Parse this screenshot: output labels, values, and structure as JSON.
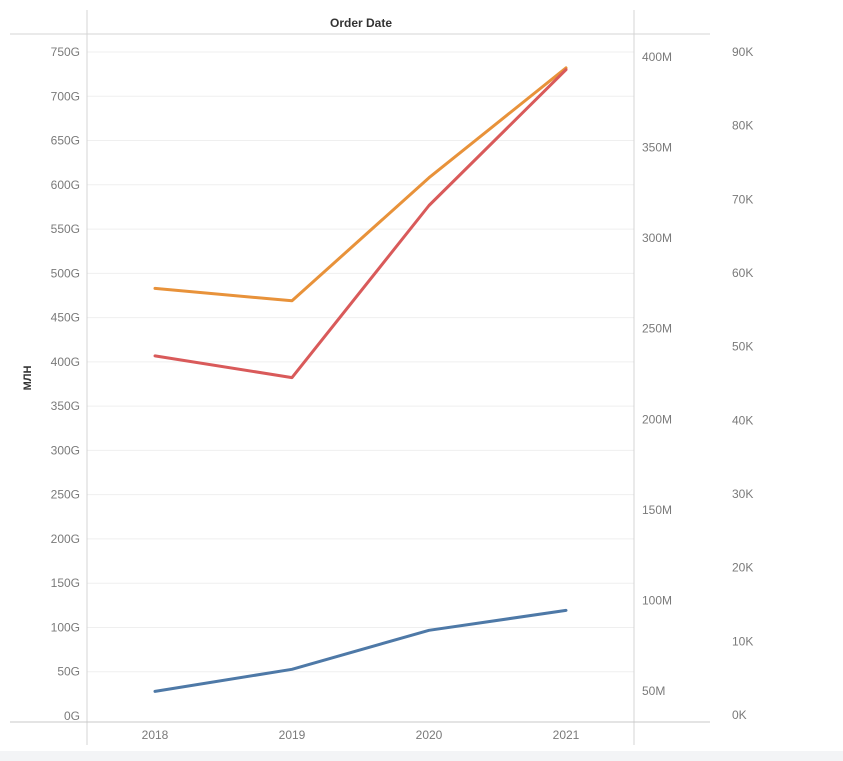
{
  "chart_data": {
    "type": "line",
    "column_header": "Order Date",
    "ylabel": "МЛН",
    "categories": [
      "2018",
      "2019",
      "2020",
      "2021"
    ],
    "axes": {
      "left": {
        "ticks": [
          "0G",
          "50G",
          "100G",
          "150G",
          "200G",
          "250G",
          "300G",
          "350G",
          "400G",
          "450G",
          "500G",
          "550G",
          "600G",
          "650G",
          "700G",
          "750G"
        ],
        "range": [
          0,
          750
        ]
      },
      "right1": {
        "ticks": [
          "50M",
          "100M",
          "150M",
          "200M",
          "250M",
          "300M",
          "350M",
          "400M"
        ],
        "range": [
          50,
          400
        ]
      },
      "right2": {
        "ticks": [
          "0K",
          "10K",
          "20K",
          "30K",
          "40K",
          "50K",
          "60K",
          "70K",
          "80K",
          "90K"
        ],
        "range": [
          0,
          90
        ]
      }
    },
    "series": [
      {
        "color": "#e8923a",
        "axis": "left",
        "values": [
          483,
          469,
          608,
          732
        ]
      },
      {
        "color": "#d95a5a",
        "axis": "right1",
        "values": [
          235,
          223,
          318,
          393
        ]
      },
      {
        "color": "#4e79a7",
        "axis": "right2",
        "values": [
          3.2,
          6.2,
          11.5,
          14.2
        ]
      }
    ],
    "grid": true,
    "legend": "none"
  }
}
